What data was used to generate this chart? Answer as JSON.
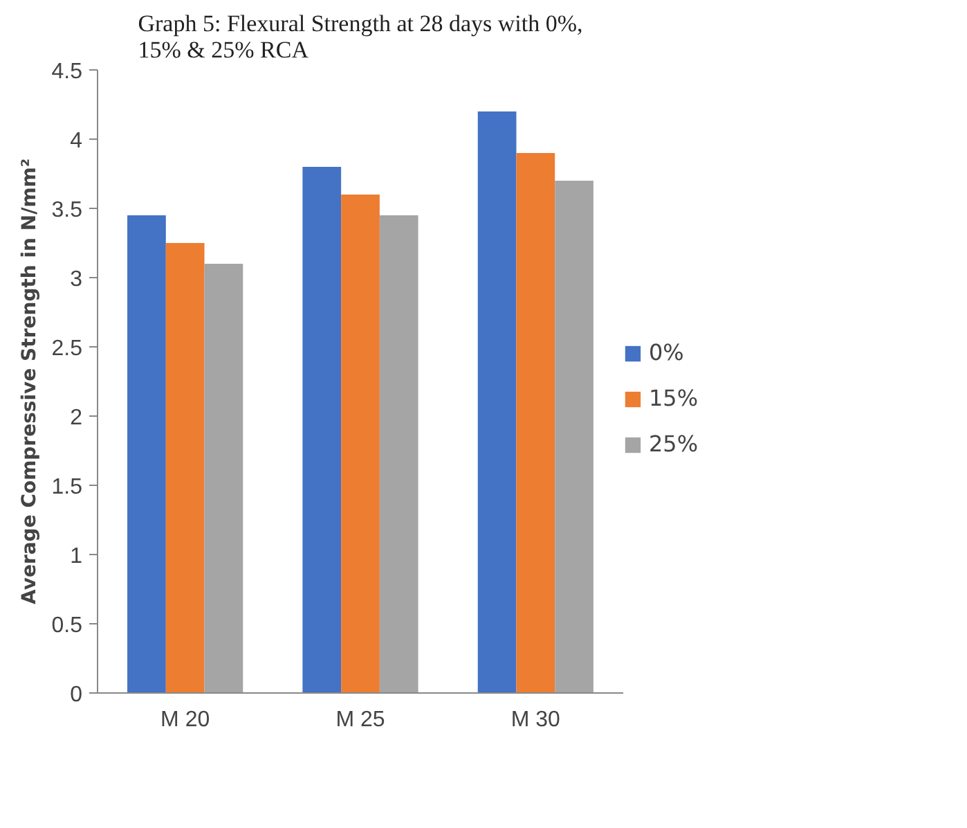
{
  "chart_data": {
    "type": "bar",
    "title": "Graph 5: Flexural Strength at 28 days with 0%, 15% & 25% RCA",
    "ylabel": "Average Compressive Strength in N/mm²",
    "categories": [
      "M 20",
      "M 25",
      "M 30"
    ],
    "series": [
      {
        "name": "0%",
        "color": "#4472c4",
        "values": [
          3.45,
          3.8,
          4.2
        ]
      },
      {
        "name": "15%",
        "color": "#ed7d31",
        "values": [
          3.25,
          3.6,
          3.9
        ]
      },
      {
        "name": "25%",
        "color": "#a5a5a5",
        "values": [
          3.1,
          3.45,
          3.7
        ]
      }
    ],
    "ylim": [
      0,
      4.5
    ],
    "yticks": [
      0,
      0.5,
      1,
      1.5,
      2,
      2.5,
      3,
      3.5,
      4,
      4.5
    ],
    "grid": false,
    "legend": "right"
  }
}
